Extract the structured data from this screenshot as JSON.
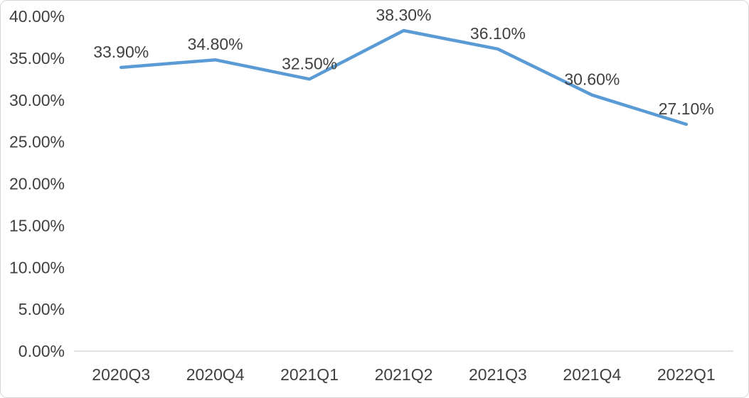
{
  "chart_data": {
    "type": "line",
    "title": "",
    "xlabel": "",
    "ylabel": "",
    "categories": [
      "2020Q3",
      "2020Q4",
      "2021Q1",
      "2021Q2",
      "2021Q3",
      "2021Q4",
      "2022Q1"
    ],
    "values": [
      33.9,
      34.8,
      32.5,
      38.3,
      36.1,
      30.6,
      27.1
    ],
    "data_labels": [
      "33.90%",
      "34.80%",
      "32.50%",
      "38.30%",
      "36.10%",
      "30.60%",
      "27.10%"
    ],
    "y_tick_labels": [
      "0.00%",
      "5.00%",
      "10.00%",
      "15.00%",
      "20.00%",
      "25.00%",
      "30.00%",
      "35.00%",
      "40.00%"
    ],
    "y_tick_values": [
      0,
      5,
      10,
      15,
      20,
      25,
      30,
      35,
      40
    ],
    "ylim": [
      0,
      40
    ],
    "grid": false,
    "legend": "none",
    "line_color": "#5B9BD5",
    "axis_line_color": "#D9D9D9",
    "text_color": "#404040",
    "frame_border_color": "#D7D7D7",
    "background_color": "#FFFFFF"
  }
}
